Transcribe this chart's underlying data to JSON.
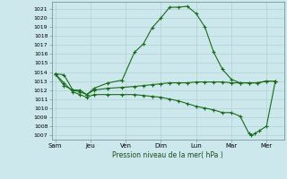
{
  "background_color": "#cce8ed",
  "grid_color": "#aacccc",
  "line_color": "#1a6b1a",
  "marker_color": "#1a6b1a",
  "xlabel": "Pression niveau de la mer( hPa )",
  "ylim": [
    1006.5,
    1021.8
  ],
  "yticks": [
    1007,
    1008,
    1009,
    1010,
    1011,
    1012,
    1013,
    1014,
    1015,
    1016,
    1017,
    1018,
    1019,
    1020,
    1021
  ],
  "xtick_labels": [
    "Sam",
    "Jeu",
    "Ven",
    "Dim",
    "Lun",
    "Mar",
    "Mer"
  ],
  "xtick_positions": [
    0,
    2,
    4,
    6,
    8,
    10,
    12
  ],
  "xlim": [
    -0.2,
    13.0
  ],
  "series1_x": [
    0,
    0.5,
    1.0,
    1.4,
    1.8,
    2.2,
    3.0,
    3.8,
    4.5,
    5.0,
    5.5,
    6.0,
    6.5,
    7.0,
    7.5,
    8.0,
    8.5,
    9.0,
    9.5,
    10.0,
    10.5,
    11.0,
    11.5,
    12.0,
    12.5
  ],
  "series1_y": [
    1013.8,
    1013.7,
    1012.0,
    1012.0,
    1011.5,
    1012.2,
    1012.8,
    1013.1,
    1016.2,
    1017.1,
    1018.9,
    1020.0,
    1021.2,
    1021.2,
    1021.3,
    1020.5,
    1019.0,
    1016.2,
    1014.3,
    1013.2,
    1012.8,
    1012.8,
    1012.8,
    1013.0,
    1013.0
  ],
  "series2_x": [
    0,
    0.5,
    1.0,
    1.4,
    1.8,
    2.2,
    3.0,
    3.8,
    4.5,
    5.0,
    5.5,
    6.0,
    6.5,
    7.0,
    7.5,
    8.0,
    8.5,
    9.0,
    9.5,
    10.0,
    10.5,
    11.0,
    11.5,
    12.0,
    12.5
  ],
  "series2_y": [
    1013.8,
    1012.5,
    1012.0,
    1011.8,
    1011.5,
    1012.0,
    1012.2,
    1012.3,
    1012.4,
    1012.5,
    1012.6,
    1012.7,
    1012.8,
    1012.8,
    1012.8,
    1012.9,
    1012.9,
    1012.9,
    1012.9,
    1012.8,
    1012.8,
    1012.8,
    1012.8,
    1013.0,
    1013.0
  ],
  "series3_x": [
    0,
    0.5,
    1.0,
    1.4,
    1.8,
    2.2,
    3.0,
    3.8,
    4.5,
    5.0,
    5.5,
    6.0,
    6.5,
    7.0,
    7.5,
    8.0,
    8.5,
    9.0,
    9.5,
    10.0,
    10.5,
    11.0,
    11.15,
    11.35,
    11.6,
    12.0,
    12.5
  ],
  "series3_y": [
    1013.8,
    1012.8,
    1011.8,
    1011.5,
    1011.2,
    1011.5,
    1011.5,
    1011.5,
    1011.5,
    1011.4,
    1011.3,
    1011.2,
    1011.0,
    1010.8,
    1010.5,
    1010.2,
    1010.0,
    1009.8,
    1009.5,
    1009.5,
    1009.1,
    1007.2,
    1007.0,
    1007.2,
    1007.5,
    1008.0,
    1013.0
  ]
}
